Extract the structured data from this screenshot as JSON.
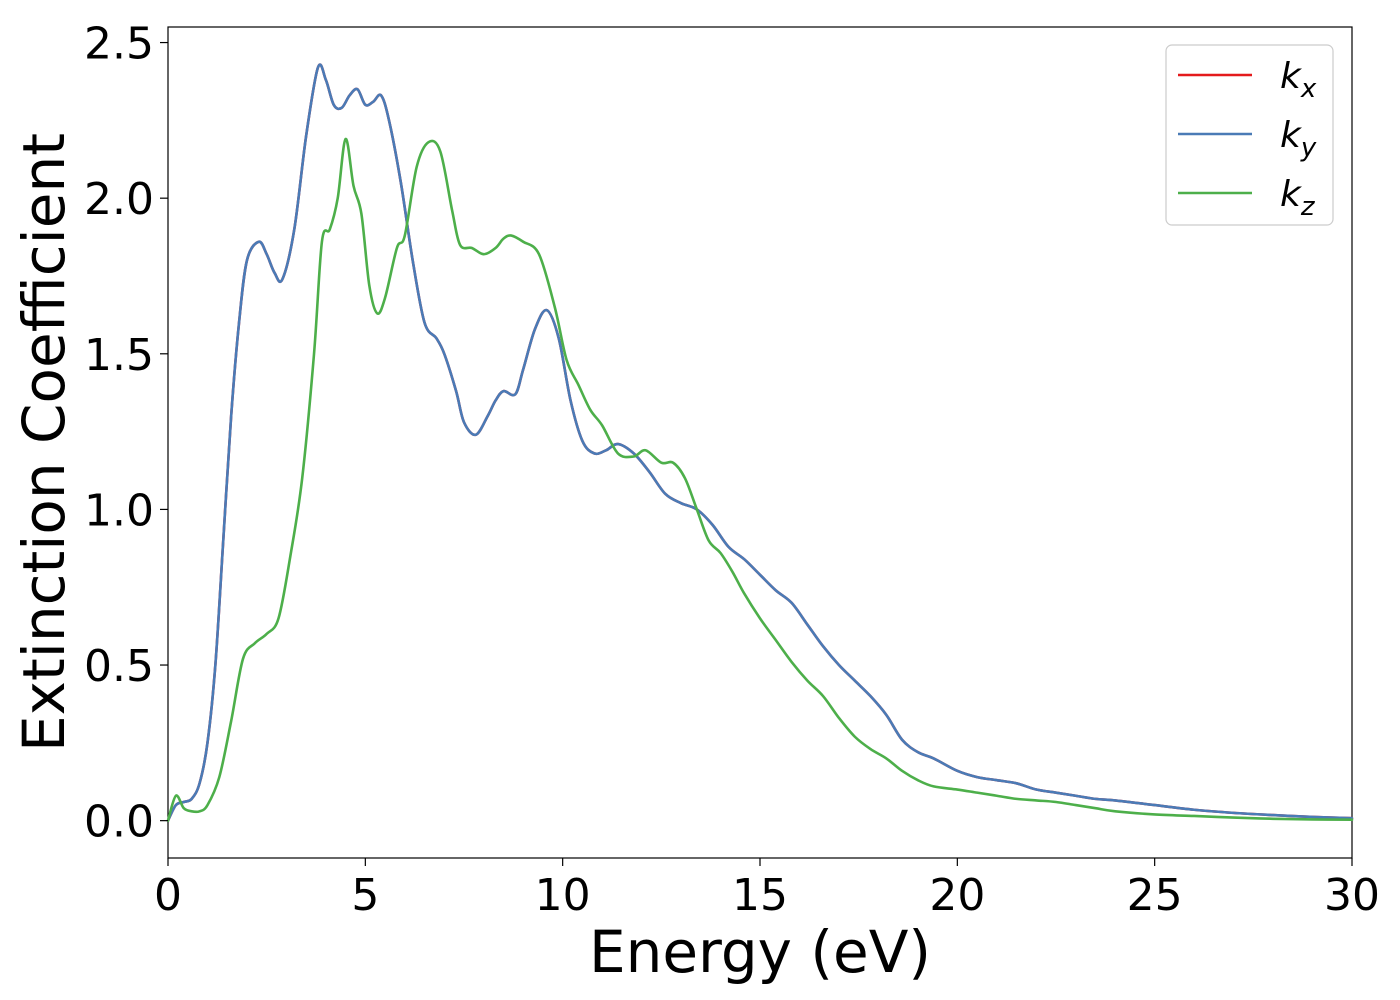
{
  "chart_data": {
    "type": "line",
    "xlabel": "Energy (eV)",
    "ylabel": "Extinction Coefficient",
    "xlim": [
      0,
      30
    ],
    "ylim": [
      -0.12,
      2.55
    ],
    "x_ticks": [
      0,
      5,
      10,
      15,
      20,
      25,
      30
    ],
    "x_tick_labels": [
      "0",
      "5",
      "10",
      "15",
      "20",
      "25",
      "30"
    ],
    "y_ticks": [
      0.0,
      0.5,
      1.0,
      1.5,
      2.0,
      2.5
    ],
    "y_tick_labels": [
      "0.0",
      "0.5",
      "1.0",
      "1.5",
      "2.0",
      "2.5"
    ],
    "grid": false,
    "legend_position": "top-right",
    "series": [
      {
        "name": "k_x",
        "legend_base": "k",
        "legend_sub": "x",
        "color": "#e41a1c",
        "x": [
          0,
          0.2,
          0.4,
          0.6,
          0.8,
          1.0,
          1.2,
          1.4,
          1.6,
          1.8,
          2.0,
          2.3,
          2.5,
          2.7,
          2.9,
          3.2,
          3.5,
          3.8,
          4.0,
          4.2,
          4.4,
          4.6,
          4.8,
          5.0,
          5.2,
          5.4,
          5.6,
          5.9,
          6.2,
          6.5,
          6.8,
          7.0,
          7.3,
          7.5,
          7.8,
          8.1,
          8.3,
          8.5,
          8.8,
          9.0,
          9.3,
          9.6,
          9.9,
          10.2,
          10.5,
          10.8,
          11.1,
          11.4,
          11.8,
          12.2,
          12.6,
          13.0,
          13.4,
          13.8,
          14.2,
          14.6,
          15.0,
          15.4,
          15.8,
          16.2,
          16.6,
          17.0,
          17.4,
          17.8,
          18.2,
          18.6,
          19.0,
          19.4,
          20.0,
          20.5,
          21.0,
          21.5,
          22.0,
          22.5,
          23.0,
          23.5,
          24.0,
          25.0,
          26.0,
          27.0,
          28.0,
          29.0,
          30.0
        ],
        "y": [
          0.0,
          0.05,
          0.06,
          0.07,
          0.12,
          0.25,
          0.5,
          0.9,
          1.3,
          1.6,
          1.8,
          1.86,
          1.82,
          1.76,
          1.74,
          1.9,
          2.2,
          2.42,
          2.38,
          2.3,
          2.29,
          2.33,
          2.35,
          2.3,
          2.31,
          2.33,
          2.25,
          2.05,
          1.8,
          1.6,
          1.55,
          1.5,
          1.38,
          1.28,
          1.24,
          1.3,
          1.35,
          1.38,
          1.37,
          1.45,
          1.58,
          1.64,
          1.55,
          1.35,
          1.22,
          1.18,
          1.19,
          1.21,
          1.18,
          1.12,
          1.05,
          1.02,
          1.0,
          0.95,
          0.88,
          0.84,
          0.79,
          0.74,
          0.7,
          0.63,
          0.56,
          0.5,
          0.45,
          0.4,
          0.34,
          0.26,
          0.22,
          0.2,
          0.16,
          0.14,
          0.13,
          0.12,
          0.1,
          0.09,
          0.08,
          0.07,
          0.065,
          0.05,
          0.035,
          0.025,
          0.018,
          0.012,
          0.008
        ]
      },
      {
        "name": "k_y",
        "legend_base": "k",
        "legend_sub": "y",
        "color": "#4a7bb6",
        "x": [
          0,
          0.2,
          0.4,
          0.6,
          0.8,
          1.0,
          1.2,
          1.4,
          1.6,
          1.8,
          2.0,
          2.3,
          2.5,
          2.7,
          2.9,
          3.2,
          3.5,
          3.8,
          4.0,
          4.2,
          4.4,
          4.6,
          4.8,
          5.0,
          5.2,
          5.4,
          5.6,
          5.9,
          6.2,
          6.5,
          6.8,
          7.0,
          7.3,
          7.5,
          7.8,
          8.1,
          8.3,
          8.5,
          8.8,
          9.0,
          9.3,
          9.6,
          9.9,
          10.2,
          10.5,
          10.8,
          11.1,
          11.4,
          11.8,
          12.2,
          12.6,
          13.0,
          13.4,
          13.8,
          14.2,
          14.6,
          15.0,
          15.4,
          15.8,
          16.2,
          16.6,
          17.0,
          17.4,
          17.8,
          18.2,
          18.6,
          19.0,
          19.4,
          20.0,
          20.5,
          21.0,
          21.5,
          22.0,
          22.5,
          23.0,
          23.5,
          24.0,
          25.0,
          26.0,
          27.0,
          28.0,
          29.0,
          30.0
        ],
        "y": [
          0.0,
          0.05,
          0.06,
          0.07,
          0.12,
          0.25,
          0.5,
          0.9,
          1.3,
          1.6,
          1.8,
          1.86,
          1.82,
          1.76,
          1.74,
          1.9,
          2.2,
          2.42,
          2.38,
          2.3,
          2.29,
          2.33,
          2.35,
          2.3,
          2.31,
          2.33,
          2.25,
          2.05,
          1.8,
          1.6,
          1.55,
          1.5,
          1.38,
          1.28,
          1.24,
          1.3,
          1.35,
          1.38,
          1.37,
          1.45,
          1.58,
          1.64,
          1.55,
          1.35,
          1.22,
          1.18,
          1.19,
          1.21,
          1.18,
          1.12,
          1.05,
          1.02,
          1.0,
          0.95,
          0.88,
          0.84,
          0.79,
          0.74,
          0.7,
          0.63,
          0.56,
          0.5,
          0.45,
          0.4,
          0.34,
          0.26,
          0.22,
          0.2,
          0.16,
          0.14,
          0.13,
          0.12,
          0.1,
          0.09,
          0.08,
          0.07,
          0.065,
          0.05,
          0.035,
          0.025,
          0.018,
          0.012,
          0.008
        ]
      },
      {
        "name": "k_z",
        "legend_base": "k",
        "legend_sub": "z",
        "color": "#4daf4a",
        "x": [
          0,
          0.2,
          0.4,
          0.6,
          0.8,
          1.0,
          1.3,
          1.6,
          1.9,
          2.2,
          2.5,
          2.8,
          3.1,
          3.4,
          3.7,
          3.9,
          4.1,
          4.3,
          4.5,
          4.7,
          4.9,
          5.1,
          5.3,
          5.5,
          5.8,
          6.0,
          6.3,
          6.6,
          6.9,
          7.2,
          7.4,
          7.7,
          8.0,
          8.3,
          8.5,
          8.7,
          9.0,
          9.4,
          9.8,
          10.1,
          10.4,
          10.7,
          11.0,
          11.4,
          11.8,
          12.1,
          12.5,
          12.8,
          13.1,
          13.4,
          13.7,
          14.0,
          14.3,
          14.6,
          15.0,
          15.4,
          15.8,
          16.2,
          16.6,
          17.0,
          17.4,
          17.8,
          18.2,
          18.6,
          19.0,
          19.4,
          20.0,
          20.5,
          21.0,
          21.5,
          22.0,
          22.5,
          23.0,
          23.5,
          24.0,
          25.0,
          26.0,
          27.0,
          28.0,
          29.0,
          30.0
        ],
        "y": [
          0.0,
          0.08,
          0.04,
          0.03,
          0.03,
          0.05,
          0.14,
          0.32,
          0.52,
          0.57,
          0.6,
          0.65,
          0.85,
          1.1,
          1.5,
          1.86,
          1.9,
          2.0,
          2.19,
          2.04,
          1.95,
          1.72,
          1.63,
          1.68,
          1.84,
          1.88,
          2.1,
          2.18,
          2.15,
          1.96,
          1.85,
          1.84,
          1.82,
          1.84,
          1.87,
          1.88,
          1.86,
          1.82,
          1.65,
          1.48,
          1.4,
          1.32,
          1.27,
          1.18,
          1.17,
          1.19,
          1.15,
          1.15,
          1.1,
          1.0,
          0.9,
          0.86,
          0.8,
          0.73,
          0.65,
          0.58,
          0.51,
          0.45,
          0.4,
          0.33,
          0.27,
          0.23,
          0.2,
          0.16,
          0.13,
          0.11,
          0.1,
          0.09,
          0.08,
          0.07,
          0.065,
          0.06,
          0.05,
          0.04,
          0.03,
          0.02,
          0.015,
          0.01,
          0.006,
          0.004,
          0.003
        ]
      }
    ]
  }
}
